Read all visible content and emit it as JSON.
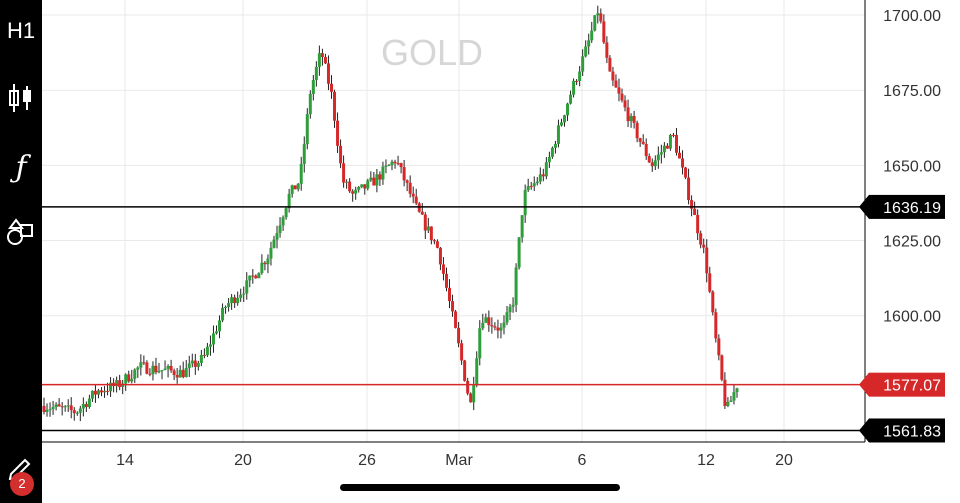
{
  "toolbar": {
    "timeframe": "H1",
    "items": [
      {
        "name": "timeframe-button",
        "label": "H1"
      },
      {
        "name": "candlestick-icon",
        "icon": "candlestick"
      },
      {
        "name": "indicator-icon",
        "icon": "function-f"
      },
      {
        "name": "objects-icon",
        "icon": "shapes"
      },
      {
        "name": "pencil-icon",
        "icon": "pencil"
      }
    ],
    "notification_count": "2"
  },
  "colors": {
    "bull": "#2e9e3a",
    "bear": "#d62828",
    "grid": "#e9e9e9",
    "bid_line": "#d62828",
    "hline": "#000000",
    "watermark": "#d6d6d6"
  },
  "chart_data": {
    "type": "candlestick",
    "title": "GOLD",
    "x_tick_labels": [
      "14",
      "20",
      "26",
      "Mar",
      "6",
      "12",
      "20"
    ],
    "y_tick_labels": [
      "1700.00",
      "1675.00",
      "1650.00",
      "1625.00",
      "1600.00"
    ],
    "ylim": [
      1558,
      1705
    ],
    "horizontal_lines": [
      {
        "label": "1636.19",
        "value": 1636.19,
        "color": "#000000"
      },
      {
        "label": "1577.07",
        "value": 1577.07,
        "color": "#d62828"
      },
      {
        "label": "1561.83",
        "value": 1561.83,
        "color": "#000000"
      }
    ],
    "grid": true,
    "series": [
      {
        "close_path": [
          [
            "Feb 10 12:00",
            1570
          ],
          [
            "Feb 12",
            1568
          ],
          [
            "Feb 13",
            1575
          ],
          [
            "Feb 14",
            1577
          ],
          [
            "Feb 15",
            1583
          ],
          [
            "Feb 17",
            1581
          ],
          [
            "Feb 18",
            1586
          ],
          [
            "Feb 19",
            1603
          ],
          [
            "Feb 20",
            1610
          ],
          [
            "Feb 21",
            1620
          ],
          [
            "Feb 22",
            1640
          ],
          [
            "Feb 22 12:00",
            1645
          ],
          [
            "Feb 23",
            1675
          ],
          [
            "Feb 23 12:00",
            1688
          ],
          [
            "Feb 24",
            1673
          ],
          [
            "Feb 24 12:00",
            1645
          ],
          [
            "Feb 25",
            1640
          ],
          [
            "Feb 26",
            1645
          ],
          [
            "Feb 27",
            1652
          ],
          [
            "Feb 28",
            1635
          ],
          [
            "Feb 29",
            1622
          ],
          [
            "Mar 1",
            1588
          ],
          [
            "Mar 1 12:00",
            1570
          ],
          [
            "Mar 2",
            1600
          ],
          [
            "Mar 3",
            1595
          ],
          [
            "Mar 3 12:00",
            1605
          ],
          [
            "Mar 4",
            1640
          ],
          [
            "Mar 5",
            1648
          ],
          [
            "Mar 6",
            1670
          ],
          [
            "Mar 7",
            1690
          ],
          [
            "Mar 7 12:00",
            1702
          ],
          [
            "Mar 8",
            1680
          ],
          [
            "Mar 9",
            1665
          ],
          [
            "Mar 10",
            1650
          ],
          [
            "Mar 11",
            1660
          ],
          [
            "Mar 12",
            1633
          ],
          [
            "Mar 12 12:00",
            1620
          ],
          [
            "Mar 13",
            1592
          ],
          [
            "Mar 13 12:00",
            1568
          ],
          [
            "Mar 14",
            1577
          ]
        ]
      }
    ]
  }
}
